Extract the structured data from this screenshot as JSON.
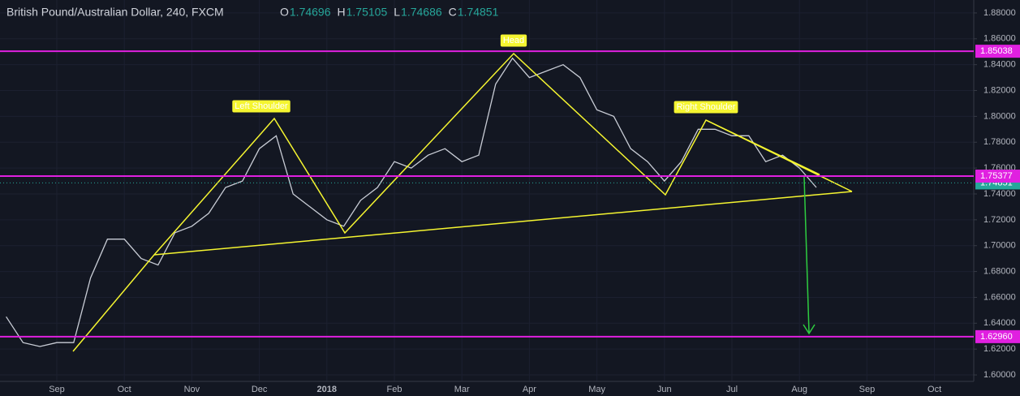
{
  "chart_data": {
    "type": "line",
    "title": "British Pound/Australian Dollar, 240, FXCM",
    "ohlc": [
      {
        "key": "O",
        "value": 1.74696
      },
      {
        "key": "H",
        "value": 1.75105
      },
      {
        "key": "L",
        "value": 1.74686
      },
      {
        "key": "C",
        "value": 1.74851
      }
    ],
    "categories": [
      null,
      null,
      null,
      "Sep",
      null,
      null,
      null,
      "Oct",
      null,
      null,
      null,
      "Nov",
      null,
      null,
      null,
      "Dec",
      null,
      null,
      null,
      "2018",
      null,
      null,
      null,
      "Feb",
      null,
      null,
      null,
      "Mar",
      null,
      null,
      null,
      "Apr",
      null,
      null,
      null,
      "May",
      null,
      null,
      null,
      "Jun",
      null,
      null,
      null,
      "Jul",
      null,
      null,
      null,
      "Aug",
      null,
      null,
      null,
      "Sep",
      null,
      null,
      null,
      "Oct",
      null,
      null,
      null
    ],
    "series": [
      {
        "name": "GBPAUD",
        "color": "#c9cdd6",
        "values": [
          1.645,
          1.625,
          1.622,
          1.625,
          1.625,
          1.675,
          1.705,
          1.705,
          1.69,
          1.685,
          1.71,
          1.715,
          1.725,
          1.745,
          1.75,
          1.775,
          1.785,
          1.74,
          1.73,
          1.72,
          1.715,
          1.735,
          1.745,
          1.765,
          1.76,
          1.77,
          1.775,
          1.765,
          1.77,
          1.825,
          1.845,
          1.83,
          1.835,
          1.84,
          1.83,
          1.805,
          1.8,
          1.775,
          1.765,
          1.75,
          1.765,
          1.79,
          1.79,
          1.785,
          1.785,
          1.765,
          1.77,
          1.76,
          1.745,
          null,
          null,
          null,
          null,
          null,
          null,
          null,
          null,
          null,
          null
        ]
      }
    ],
    "ylim": [
      1.595,
      1.89
    ],
    "yticks": [
      {
        "value": 1.6,
        "label": "1.60000"
      },
      {
        "value": 1.62,
        "label": "1.62000"
      },
      {
        "value": 1.64,
        "label": "1.64000"
      },
      {
        "value": 1.66,
        "label": "1.66000"
      },
      {
        "value": 1.68,
        "label": "1.68000"
      },
      {
        "value": 1.7,
        "label": "1.70000"
      },
      {
        "value": 1.72,
        "label": "1.72000"
      },
      {
        "value": 1.74,
        "label": "1.74000"
      },
      {
        "value": 1.76,
        "label": "1.76000"
      },
      {
        "value": 1.78,
        "label": "1.78000"
      },
      {
        "value": 1.8,
        "label": "1.80000"
      },
      {
        "value": 1.82,
        "label": "1.82000"
      },
      {
        "value": 1.84,
        "label": "1.84000"
      },
      {
        "value": 1.86,
        "label": "1.86000"
      },
      {
        "value": 1.88,
        "label": "1.88000"
      }
    ],
    "grid": true,
    "levels": [
      1.85038,
      1.75377,
      {
        "value": 1.6296,
        "label": "1.62960"
      }
    ],
    "level_color": "#e020e0",
    "last_price": 1.74851,
    "last_price_color": "#26a69a",
    "annotations": [
      "Left Shoulder",
      "Head",
      "Right Shoulder"
    ]
  }
}
